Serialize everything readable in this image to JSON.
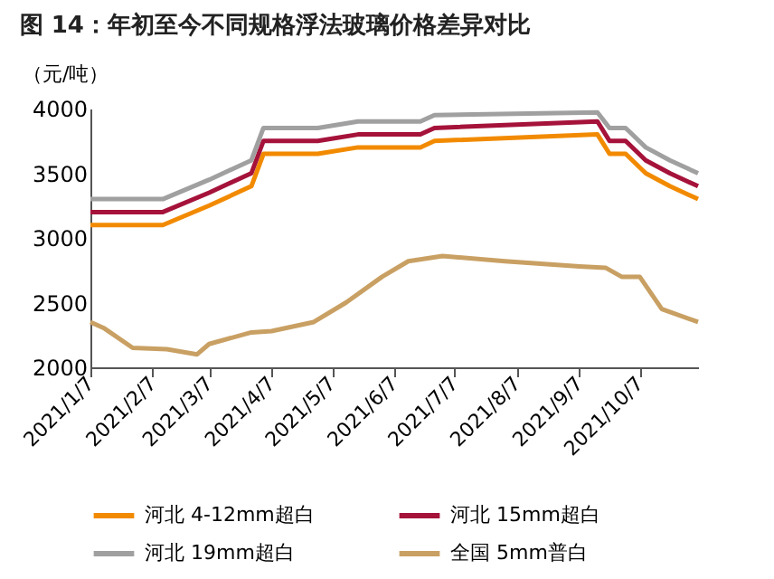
{
  "chart_data": {
    "type": "line",
    "title": "图 14：年初至今不同规格浮法玻璃价格差异对比",
    "ylabel": "（元/吨）",
    "xlim": [
      "2021-01-07",
      "2021-11-05"
    ],
    "xticks": [
      {
        "value": "2021-01-07",
        "label": "2021/1/7"
      },
      {
        "value": "2021-02-07",
        "label": "2021/2/7"
      },
      {
        "value": "2021-03-07",
        "label": "2021/3/7"
      },
      {
        "value": "2021-04-07",
        "label": "2021/4/7"
      },
      {
        "value": "2021-05-07",
        "label": "2021/5/7"
      },
      {
        "value": "2021-06-07",
        "label": "2021/6/7"
      },
      {
        "value": "2021-07-07",
        "label": "2021/7/7"
      },
      {
        "value": "2021-08-07",
        "label": "2021/8/7"
      },
      {
        "value": "2021-09-07",
        "label": "2021/9/7"
      },
      {
        "value": "2021-10-07",
        "label": "2021/10/7"
      }
    ],
    "ylim": [
      2000,
      4000
    ],
    "yticks": [
      2000,
      2500,
      3000,
      3500,
      4000
    ],
    "grid": false,
    "legend": "bottom",
    "marker": "none",
    "line_style": "solid",
    "series": [
      {
        "name": "河北 4-12mm超白",
        "color": "#f28a00",
        "x": [
          "2021-01-07",
          "2021-02-12",
          "2021-03-07",
          "2021-03-28",
          "2021-04-03",
          "2021-04-30",
          "2021-05-20",
          "2021-06-20",
          "2021-06-27",
          "2021-09-16",
          "2021-09-22",
          "2021-09-30",
          "2021-10-10",
          "2021-10-22",
          "2021-11-05"
        ],
        "values": [
          3100,
          3100,
          3250,
          3400,
          3650,
          3650,
          3700,
          3700,
          3750,
          3800,
          3650,
          3650,
          3500,
          3400,
          3300
        ]
      },
      {
        "name": "河北 15mm超白",
        "color": "#a5123a",
        "x": [
          "2021-01-07",
          "2021-02-12",
          "2021-03-07",
          "2021-03-28",
          "2021-04-03",
          "2021-04-30",
          "2021-05-20",
          "2021-06-20",
          "2021-06-27",
          "2021-09-16",
          "2021-09-22",
          "2021-09-30",
          "2021-10-10",
          "2021-10-22",
          "2021-11-05"
        ],
        "values": [
          3200,
          3200,
          3350,
          3500,
          3750,
          3750,
          3800,
          3800,
          3850,
          3900,
          3750,
          3750,
          3600,
          3500,
          3400
        ]
      },
      {
        "name": "河北 19mm超白",
        "color": "#a0a0a0",
        "x": [
          "2021-01-07",
          "2021-02-12",
          "2021-03-07",
          "2021-03-28",
          "2021-04-03",
          "2021-04-30",
          "2021-05-20",
          "2021-06-20",
          "2021-06-27",
          "2021-09-16",
          "2021-09-22",
          "2021-09-30",
          "2021-10-10",
          "2021-10-22",
          "2021-11-05"
        ],
        "values": [
          3300,
          3300,
          3450,
          3600,
          3850,
          3850,
          3900,
          3900,
          3950,
          3970,
          3850,
          3850,
          3700,
          3600,
          3500
        ]
      },
      {
        "name": "全国 5mm普白",
        "color": "#c9a063",
        "x": [
          "2021-01-07",
          "2021-01-14",
          "2021-01-28",
          "2021-02-14",
          "2021-03-01",
          "2021-03-07",
          "2021-03-28",
          "2021-04-07",
          "2021-04-28",
          "2021-05-14",
          "2021-06-01",
          "2021-06-14",
          "2021-07-01",
          "2021-08-01",
          "2021-09-07",
          "2021-09-20",
          "2021-09-28",
          "2021-10-07",
          "2021-10-18",
          "2021-11-05"
        ],
        "values": [
          2350,
          2300,
          2150,
          2140,
          2100,
          2180,
          2270,
          2280,
          2350,
          2500,
          2700,
          2820,
          2860,
          2820,
          2780,
          2770,
          2700,
          2700,
          2450,
          2350
        ]
      }
    ]
  }
}
